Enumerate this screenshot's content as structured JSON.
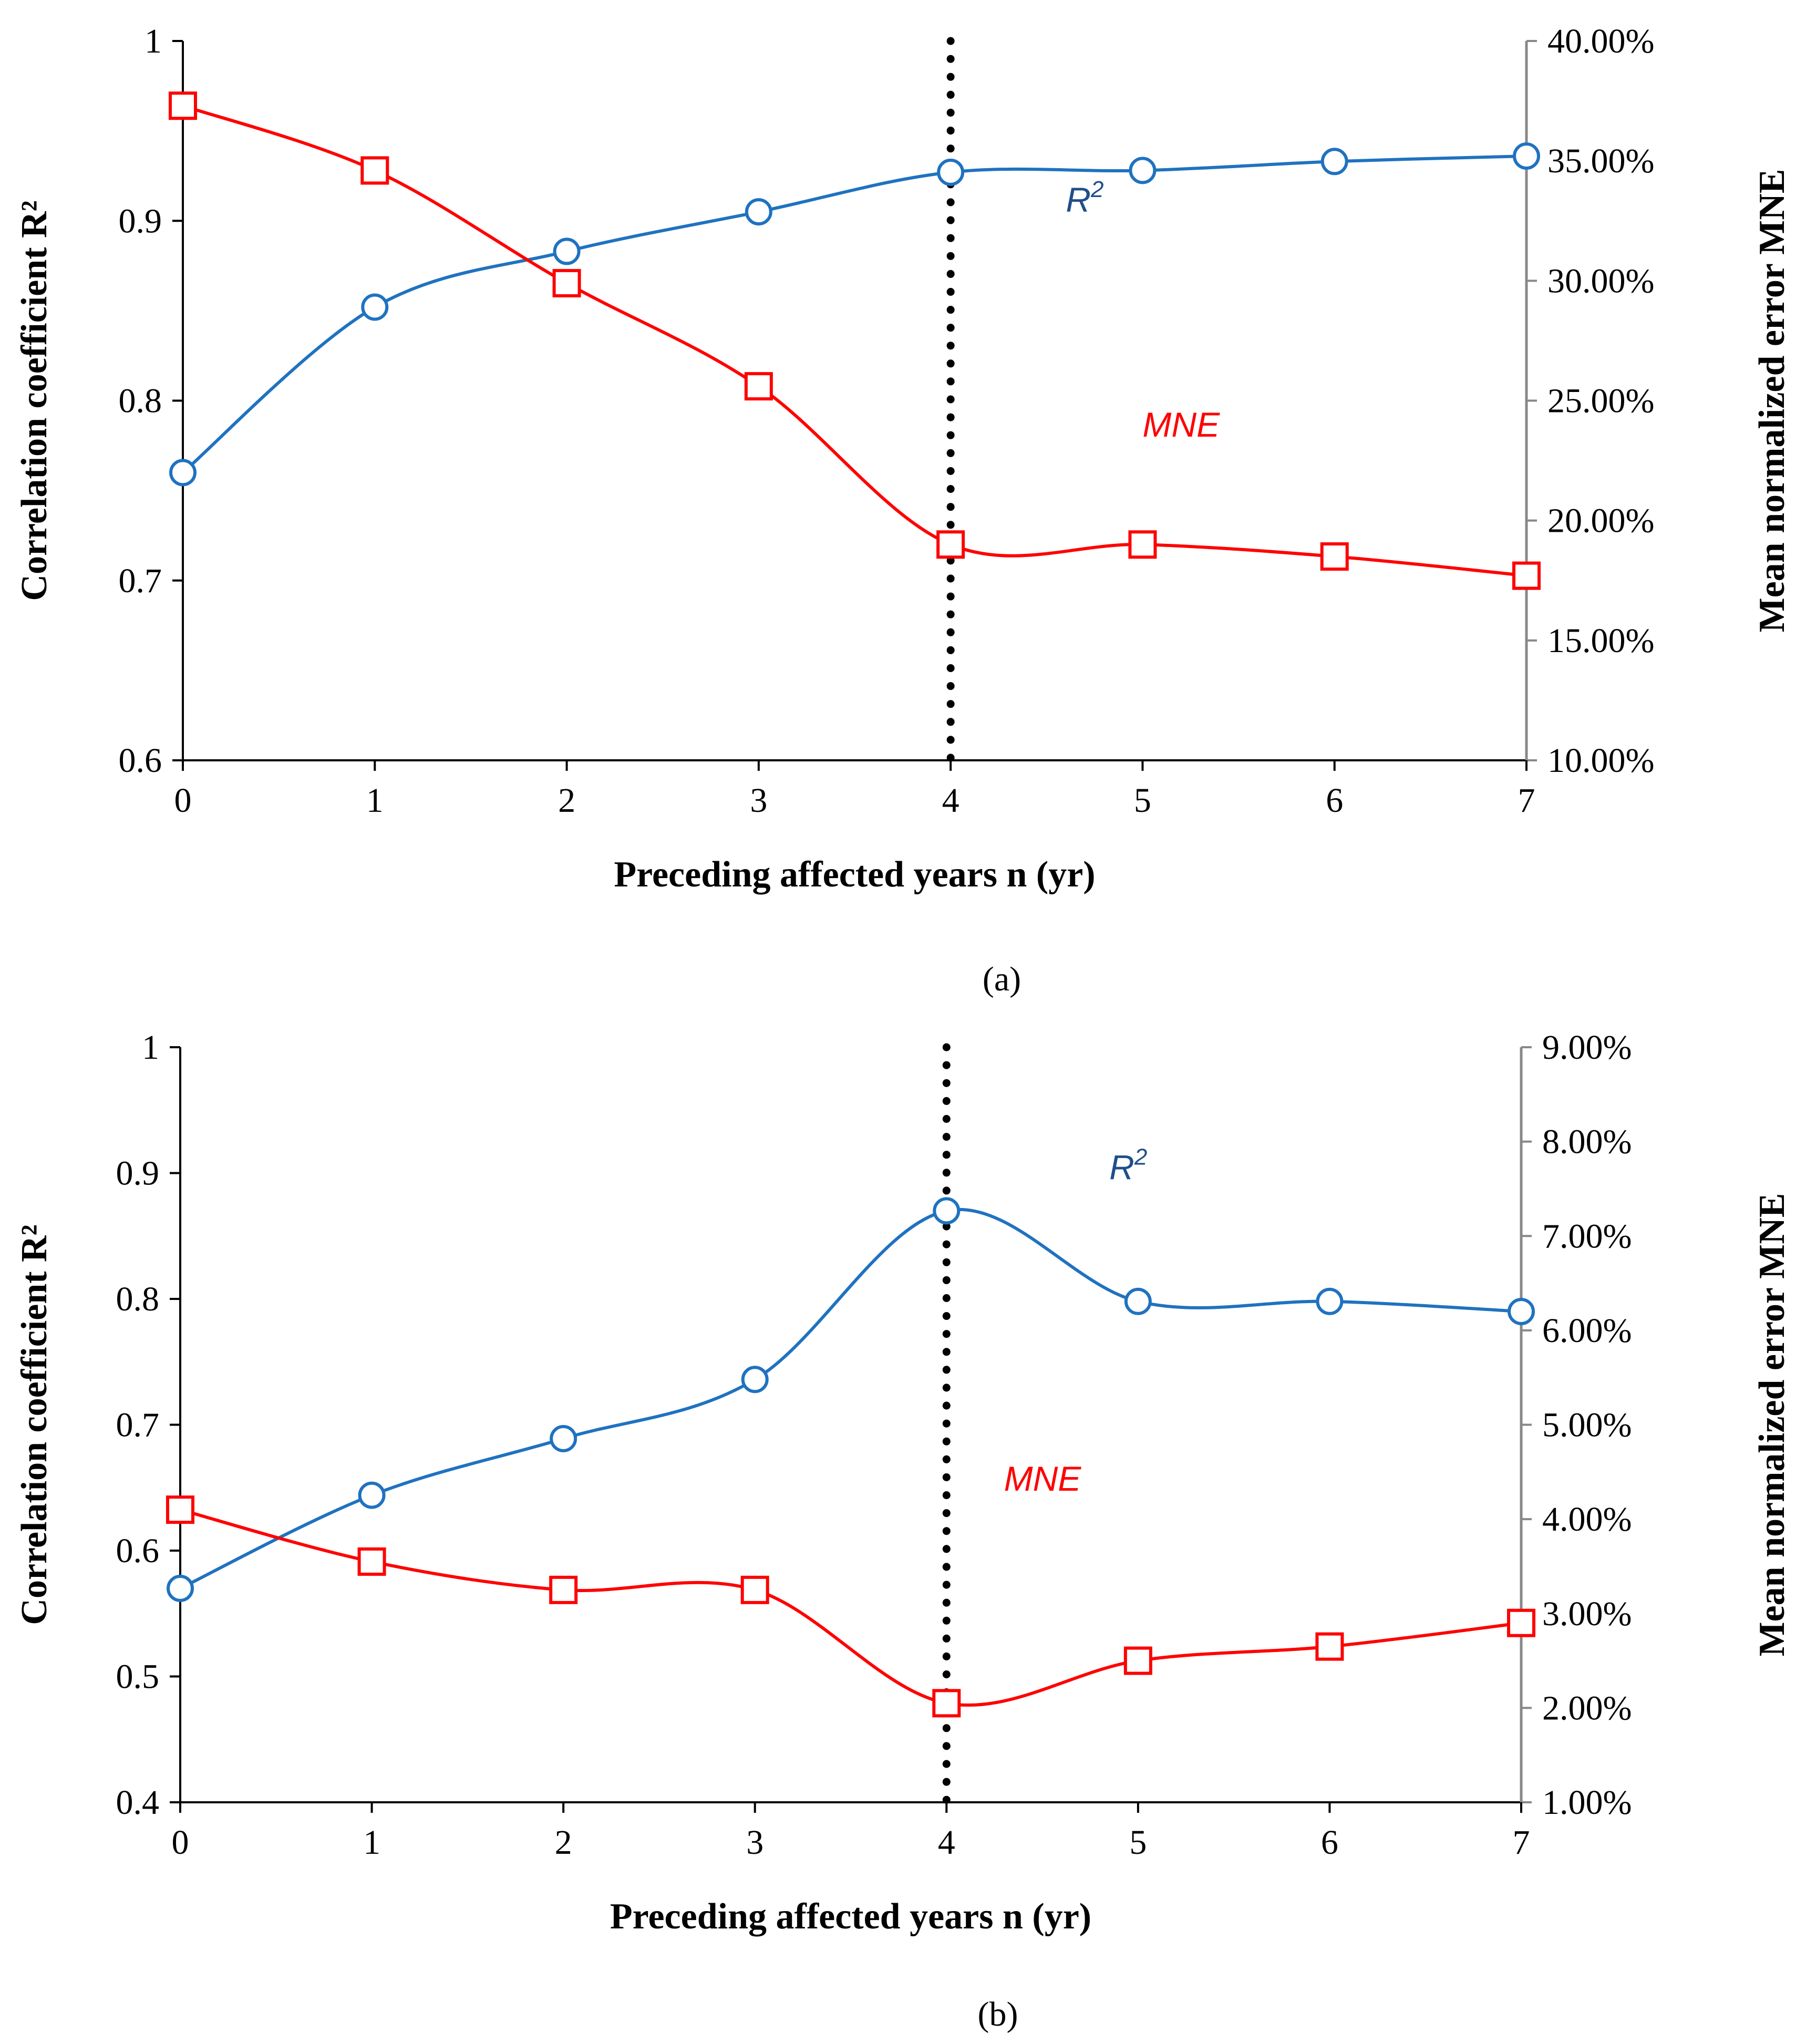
{
  "colors": {
    "r2": "#1f72c0",
    "mne": "#ff0000",
    "vline": "#000000",
    "axis": "#000000",
    "right_axis": "#888888"
  },
  "chart_data": [
    {
      "type": "line",
      "panel_label": "(a)",
      "xlabel": "Preceding affected years n (yr)",
      "ylabel": "Correlation coefficient R²",
      "y2label": "Mean normalized error MNE",
      "x": [
        0,
        1,
        2,
        3,
        4,
        5,
        6,
        7
      ],
      "xlim": [
        0,
        7
      ],
      "ylim": [
        0.6,
        1
      ],
      "y2lim": [
        10,
        40
      ],
      "xticks": [
        "0",
        "1",
        "2",
        "3",
        "4",
        "5",
        "6",
        "7"
      ],
      "yticks": [
        0.6,
        0.7,
        0.8,
        0.9,
        1
      ],
      "ytick_labels": [
        "0.6",
        "0.7",
        "0.8",
        "0.9",
        "1"
      ],
      "y2ticks": [
        10,
        15,
        20,
        25,
        30,
        35,
        40
      ],
      "y2tick_labels": [
        "10.00%",
        "15.00%",
        "20.00%",
        "25.00%",
        "30.00%",
        "35.00%",
        "40.00%"
      ],
      "vline_x": 4,
      "series": [
        {
          "key": "r2",
          "label": "R",
          "label_sup": "2",
          "axis": "left",
          "marker": "circle",
          "values": [
            0.76,
            0.852,
            0.883,
            0.905,
            0.927,
            0.928,
            0.933,
            0.936
          ],
          "label_pos": [
            4.6,
            0.905
          ]
        },
        {
          "key": "mne",
          "label": "MNE",
          "axis": "right",
          "marker": "square",
          "values": [
            37.3,
            34.6,
            29.9,
            25.6,
            19.0,
            19.0,
            18.5,
            17.7
          ],
          "label_pos": [
            5.0,
            23.5
          ]
        }
      ]
    },
    {
      "type": "line",
      "panel_label": "(b)",
      "xlabel": "Preceding affected years n (yr)",
      "ylabel": "Correlation coefficient R²",
      "y2label": "Mean normalized error MNE",
      "x": [
        0,
        1,
        2,
        3,
        4,
        5,
        6,
        7
      ],
      "xlim": [
        0,
        7
      ],
      "ylim": [
        0.4,
        1
      ],
      "y2lim": [
        1,
        9
      ],
      "xticks": [
        "0",
        "1",
        "2",
        "3",
        "4",
        "5",
        "6",
        "7"
      ],
      "yticks": [
        0.4,
        0.5,
        0.6,
        0.7,
        0.8,
        0.9,
        1
      ],
      "ytick_labels": [
        "0.4",
        "0.5",
        "0.6",
        "0.7",
        "0.8",
        "0.9",
        "1"
      ],
      "y2ticks": [
        1,
        2,
        3,
        4,
        5,
        6,
        7,
        8,
        9
      ],
      "y2tick_labels": [
        "1.00%",
        "2.00%",
        "3.00%",
        "4.00%",
        "5.00%",
        "6.00%",
        "7.00%",
        "8.00%",
        "9.00%"
      ],
      "vline_x": 4,
      "series": [
        {
          "key": "r2",
          "label": "R",
          "label_sup": "2",
          "axis": "left",
          "marker": "circle",
          "values": [
            0.57,
            0.644,
            0.689,
            0.736,
            0.87,
            0.798,
            0.798,
            0.79
          ],
          "label_pos": [
            4.85,
            0.895
          ]
        },
        {
          "key": "mne",
          "label": "MNE",
          "axis": "right",
          "marker": "square",
          "values": [
            4.1,
            3.55,
            3.25,
            3.25,
            2.05,
            2.5,
            2.65,
            2.9
          ],
          "label_pos": [
            4.3,
            4.3
          ]
        }
      ]
    }
  ]
}
